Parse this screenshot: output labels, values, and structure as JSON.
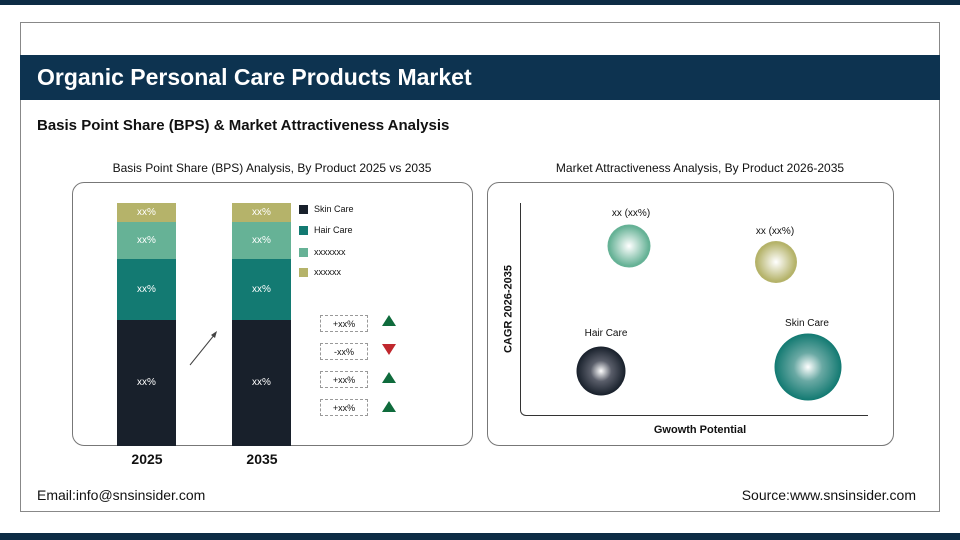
{
  "header": {
    "title": "Organic Personal Care Products Market",
    "subtitle": "Basis Point Share (BPS) & Market Attractiveness Analysis"
  },
  "chart_data": [
    {
      "type": "bar",
      "stacked": true,
      "title": "Basis Point Share (BPS) Analysis, By Product 2025 vs 2035",
      "categories": [
        "2025",
        "2035"
      ],
      "series": [
        {
          "name": "Skin Care",
          "color": "#18202b",
          "values": [
            52,
            52
          ],
          "labels": [
            "xx%",
            "xx%"
          ]
        },
        {
          "name": "Hair Care",
          "color": "#137a72",
          "values": [
            25,
            25
          ],
          "labels": [
            "xx%",
            "xx%"
          ]
        },
        {
          "name": "xxxxxxx",
          "color": "#66b296",
          "values": [
            15,
            15
          ],
          "labels": [
            "xx%",
            "xx%"
          ]
        },
        {
          "name": "xxxxxx",
          "color": "#b5b36a",
          "values": [
            8,
            8
          ],
          "labels": [
            "xx%",
            "xx%"
          ]
        }
      ],
      "legend": "right",
      "changes": [
        {
          "label": "+xx%",
          "trend": "up"
        },
        {
          "label": "-xx%",
          "trend": "down"
        },
        {
          "label": "+xx%",
          "trend": "up"
        },
        {
          "label": "+xx%",
          "trend": "up"
        }
      ]
    },
    {
      "type": "scatter",
      "title": "Market Attractiveness Analysis, By Product 2026-2035",
      "xlabel": "Gwowth Potential",
      "ylabel": "CAGR 2026-2035",
      "points": [
        {
          "label": "xx (xx%)",
          "color": "#66b296"
        },
        {
          "label": "xx (xx%)",
          "color": "#b5b36a"
        },
        {
          "label": "Hair Care",
          "color": "#18202b"
        },
        {
          "label": "Skin Care",
          "color": "#137a72"
        }
      ]
    }
  ],
  "footer": {
    "email": "Email:info@snsinsider.com",
    "source": "Source:www.snsinsider.com"
  }
}
